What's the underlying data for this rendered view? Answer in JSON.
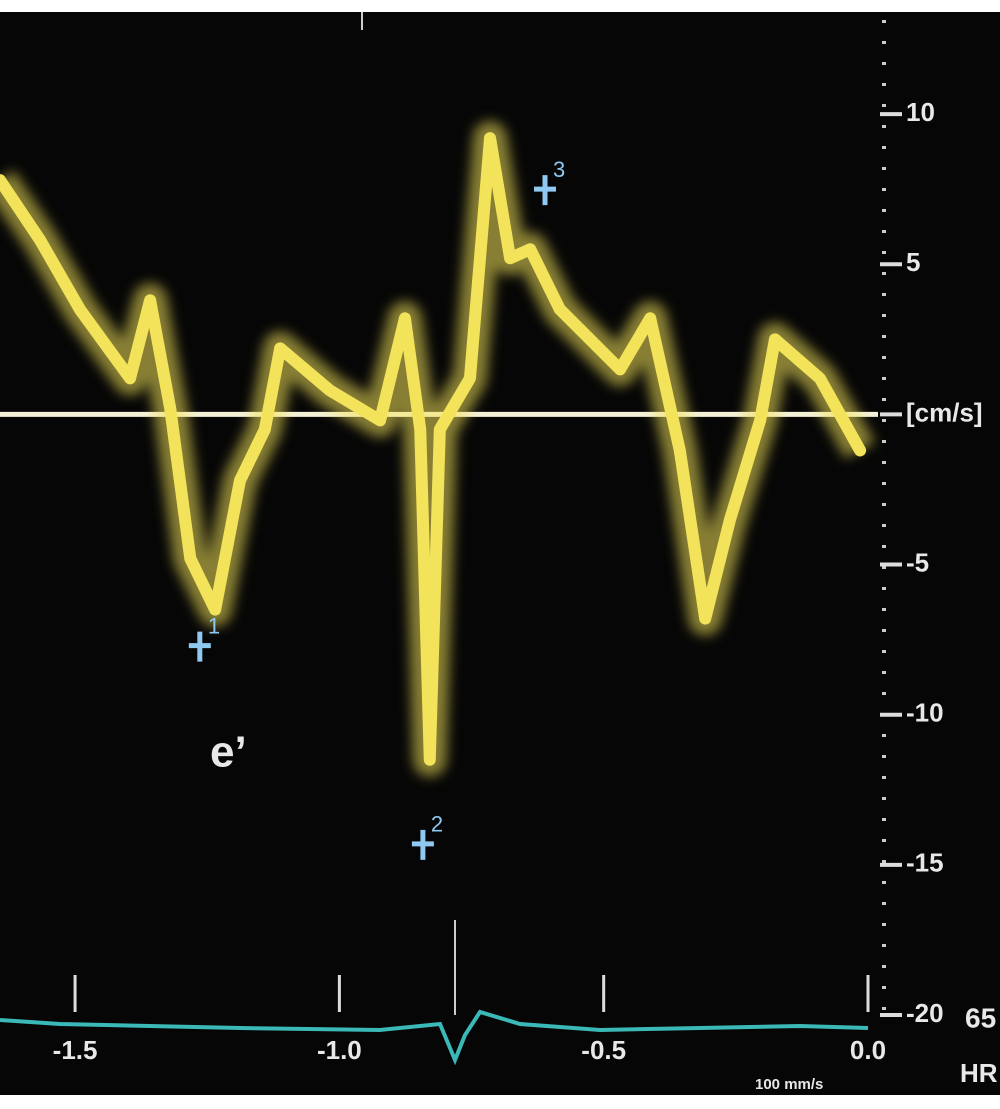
{
  "chart_data": {
    "type": "doppler",
    "xlim": [
      -1.642,
      0
    ],
    "ylim": [
      -20,
      13.4
    ],
    "xticks": [
      -1.5,
      {
        "value": -1,
        "label": "-1.0"
      },
      -0.5,
      {
        "value": 0,
        "label": "0.0"
      }
    ],
    "yticks": [
      10,
      5,
      {
        "value": 0,
        "label": "[cm/s]"
      },
      -5,
      -10,
      -15,
      -20
    ],
    "x": [
      -1.642,
      -1.566,
      -1.491,
      -1.396,
      -1.358,
      -1.32,
      -1.282,
      -1.235,
      -1.188,
      -1.141,
      -1.112,
      -1.018,
      -0.923,
      -0.876,
      -0.847,
      -0.829,
      -0.81,
      -0.753,
      -0.715,
      -0.677,
      -0.639,
      -0.583,
      -0.469,
      -0.412,
      -0.356,
      -0.308,
      -0.261,
      -0.204,
      -0.176,
      -0.091,
      -0.015
    ],
    "series": [
      {
        "color": "#f3e35a",
        "values": [
          7.8,
          5.8,
          3.5,
          1.2,
          3.8,
          0.2,
          -4.8,
          -6.5,
          -2.2,
          -0.5,
          2.2,
          0.8,
          -0.2,
          3.2,
          -0.5,
          -11.5,
          -0.5,
          1.2,
          9.2,
          5.2,
          5.5,
          3.5,
          1.5,
          3.2,
          -1.2,
          -6.8,
          -3.5,
          -0.2,
          2.5,
          1.2,
          -1.2
        ]
      }
    ],
    "markers": [
      {
        "label": "1",
        "x": -1.264,
        "y": -7.7
      },
      {
        "label": "2",
        "x": -0.842,
        "y": -14.3
      },
      {
        "label": "3",
        "x": -0.611,
        "y": 7.5
      }
    ],
    "marker_color": "#8fc8f0",
    "annotation": "e’",
    "heart_rate": "65",
    "heart_rate_label": "HR",
    "sweep_speed": "100 mm/s"
  }
}
